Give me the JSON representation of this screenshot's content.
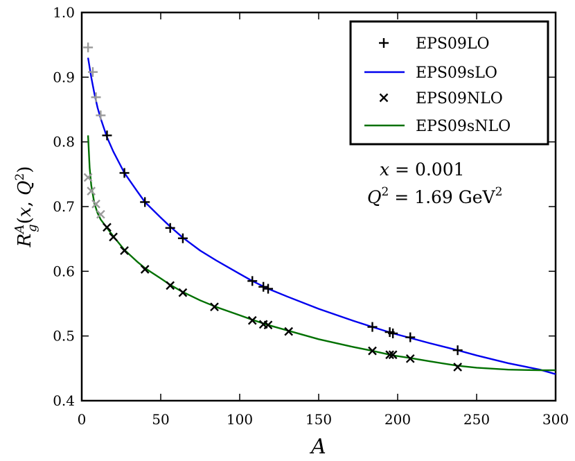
{
  "chart_data": {
    "type": "line",
    "xlabel": "A",
    "ylabel": "R_g^A(x, Q^2)",
    "xlim": [
      0,
      300
    ],
    "ylim": [
      0.4,
      1.0
    ],
    "xticks": [
      "0",
      "50",
      "100",
      "150",
      "200",
      "250",
      "300"
    ],
    "yticks": [
      "0.4",
      "0.5",
      "0.6",
      "0.7",
      "0.8",
      "0.9",
      "1.0"
    ],
    "grid": false,
    "legend_position": "top-right",
    "legend": [
      "EPS09LO",
      "EPS09sLO",
      "EPS09NLO",
      "EPS09sNLO"
    ],
    "annotations": [
      {
        "x_part": "x = 0.001",
        "q_part": "Q",
        "q_sup": "2",
        "q_rest": " = 1.69 GeV",
        "unit_sup": "2"
      }
    ],
    "series": [
      {
        "name": "EPS09LO",
        "kind": "scatter",
        "marker": "plus",
        "color": "#000000",
        "light_color": "#9a9a9a",
        "points": [
          [
            4,
            0.946,
            "light"
          ],
          [
            7,
            0.908,
            "light"
          ],
          [
            9,
            0.869,
            "light"
          ],
          [
            12,
            0.841,
            "light"
          ],
          [
            16,
            0.81
          ],
          [
            27,
            0.752
          ],
          [
            40,
            0.707
          ],
          [
            56,
            0.667
          ],
          [
            64,
            0.651
          ],
          [
            108,
            0.585
          ],
          [
            115,
            0.576
          ],
          [
            118,
            0.573
          ],
          [
            184,
            0.514
          ],
          [
            195,
            0.506
          ],
          [
            197,
            0.504
          ],
          [
            208,
            0.498
          ],
          [
            238,
            0.478
          ]
        ]
      },
      {
        "name": "EPS09sLO",
        "kind": "line",
        "color": "#0000ee",
        "points": [
          [
            4,
            0.93
          ],
          [
            6,
            0.9
          ],
          [
            8,
            0.875
          ],
          [
            10,
            0.853
          ],
          [
            12,
            0.836
          ],
          [
            16,
            0.807
          ],
          [
            20,
            0.785
          ],
          [
            27,
            0.752
          ],
          [
            35,
            0.724
          ],
          [
            40,
            0.707
          ],
          [
            50,
            0.683
          ],
          [
            56,
            0.669
          ],
          [
            64,
            0.652
          ],
          [
            75,
            0.632
          ],
          [
            85,
            0.617
          ],
          [
            100,
            0.596
          ],
          [
            108,
            0.585
          ],
          [
            118,
            0.573
          ],
          [
            130,
            0.561
          ],
          [
            150,
            0.542
          ],
          [
            170,
            0.525
          ],
          [
            184,
            0.514
          ],
          [
            197,
            0.504
          ],
          [
            208,
            0.497
          ],
          [
            220,
            0.489
          ],
          [
            238,
            0.478
          ],
          [
            250,
            0.47
          ],
          [
            270,
            0.458
          ],
          [
            290,
            0.448
          ],
          [
            300,
            0.441
          ]
        ]
      },
      {
        "name": "EPS09NLO",
        "kind": "scatter",
        "marker": "cross",
        "color": "#000000",
        "light_color": "#9a9a9a",
        "points": [
          [
            4,
            0.745,
            "light"
          ],
          [
            6,
            0.724,
            "light"
          ],
          [
            9,
            0.704,
            "light"
          ],
          [
            12,
            0.688,
            "light"
          ],
          [
            16,
            0.668
          ],
          [
            20,
            0.653
          ],
          [
            27,
            0.632
          ],
          [
            40,
            0.603
          ],
          [
            56,
            0.578
          ],
          [
            64,
            0.567
          ],
          [
            84,
            0.545
          ],
          [
            108,
            0.524
          ],
          [
            115,
            0.518
          ],
          [
            118,
            0.517
          ],
          [
            131,
            0.507
          ],
          [
            184,
            0.477
          ],
          [
            195,
            0.471
          ],
          [
            197,
            0.471
          ],
          [
            208,
            0.465
          ],
          [
            238,
            0.452
          ]
        ]
      },
      {
        "name": "EPS09sNLO",
        "kind": "line",
        "color": "#007000",
        "points": [
          [
            4,
            0.81
          ],
          [
            5,
            0.76
          ],
          [
            6,
            0.733
          ],
          [
            8,
            0.705
          ],
          [
            10,
            0.69
          ],
          [
            12,
            0.68
          ],
          [
            16,
            0.667
          ],
          [
            20,
            0.654
          ],
          [
            27,
            0.633
          ],
          [
            35,
            0.615
          ],
          [
            40,
            0.605
          ],
          [
            50,
            0.589
          ],
          [
            56,
            0.579
          ],
          [
            64,
            0.568
          ],
          [
            75,
            0.555
          ],
          [
            85,
            0.545
          ],
          [
            100,
            0.532
          ],
          [
            108,
            0.525
          ],
          [
            118,
            0.517
          ],
          [
            131,
            0.508
          ],
          [
            150,
            0.495
          ],
          [
            170,
            0.484
          ],
          [
            184,
            0.477
          ],
          [
            197,
            0.47
          ],
          [
            208,
            0.466
          ],
          [
            220,
            0.461
          ],
          [
            238,
            0.454
          ],
          [
            250,
            0.451
          ],
          [
            270,
            0.448
          ],
          [
            290,
            0.447
          ],
          [
            300,
            0.447
          ]
        ]
      }
    ]
  }
}
